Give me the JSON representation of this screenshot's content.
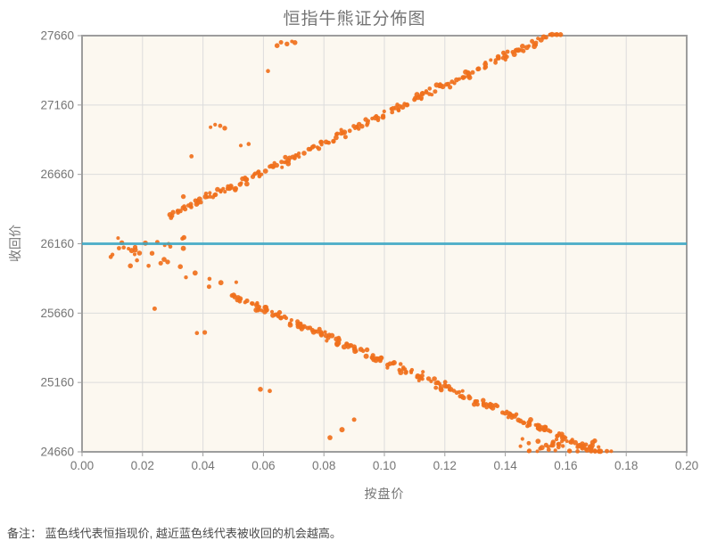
{
  "page": {
    "note": "备注： 蓝色线代表恒指现价, 越近蓝色线代表被收回的机会越高。"
  },
  "chart_data": {
    "type": "scatter",
    "title": "恒指牛熊证分佈图",
    "xlabel": "按盘价",
    "ylabel": "收回价",
    "xlim": [
      0,
      0.2
    ],
    "ylim": [
      24660,
      27660
    ],
    "x_tick_values": [
      0,
      0.02,
      0.04,
      0.06,
      0.08,
      0.1,
      0.12,
      0.14,
      0.16,
      0.18,
      0.2
    ],
    "x_tick_labels": [
      "0.00",
      "0.02",
      "0.04",
      "0.06",
      "0.08",
      "0.10",
      "0.12",
      "0.14",
      "0.16",
      "0.18",
      "0.20"
    ],
    "y_tick_values": [
      27660,
      27160,
      26660,
      26160,
      25660,
      25160,
      24660
    ],
    "y_tick_labels": [
      "27660",
      "27160",
      "26660",
      "26160",
      "25660",
      "25160",
      "24660"
    ],
    "grid": true,
    "legend": "none",
    "colors": {
      "point": "#f0701c",
      "spot_line": "#38a7c4",
      "plot_bg": "#fcf8f0",
      "grid": "#dcdcdc",
      "border": "#9d9d9d",
      "title_text": "#747474",
      "axis_text": "#757575",
      "note_text": "#4c4c4c"
    },
    "spot_line": {
      "y": 26160,
      "meaning": "恒指现价 (蓝色线)"
    },
    "point_radius": {
      "min": 2.0,
      "max": 3.0
    },
    "bands": [
      {
        "name": "bear-certificates-band-upper",
        "seed": 11,
        "count": 215,
        "x_start": 0.029,
        "x_end": 0.158,
        "x_jitter": 0.002,
        "ref_x": 0.0095,
        "ref_y": 26160,
        "slope": 10350,
        "y_sigma": 26
      },
      {
        "name": "near-spot-cloud-upper",
        "seed": 22,
        "count": 20,
        "x_start": 0.009,
        "x_end": 0.034,
        "x_jitter": 0.002,
        "ref_x": 0.0095,
        "ref_y": 26160,
        "slope": 0,
        "y_sigma": 95
      },
      {
        "name": "near-spot-lower",
        "seed": 33,
        "count": 13,
        "x_start": 0.012,
        "x_end": 0.05,
        "x_jitter": 0.002,
        "ref_x": 0.0095,
        "ref_y": 26160,
        "slope": -8600,
        "y_sigma": 60
      },
      {
        "name": "bull-certificates-band-lower",
        "seed": 44,
        "count": 235,
        "x_start": 0.05,
        "x_end": 0.171,
        "x_jitter": 0.002,
        "ref_x": 0.0095,
        "ref_y": 26160,
        "slope": -9350,
        "y_sigma": 26
      },
      {
        "name": "lower-bottom-edge-clump",
        "seed": 55,
        "count": 40,
        "x_start": 0.146,
        "x_end": 0.173,
        "x_jitter": 0.003,
        "ref_x": 0.16,
        "ref_y": 24700,
        "slope": -600,
        "y_sigma": 45
      }
    ],
    "outlier_points": [
      [
        0.0615,
        27405
      ],
      [
        0.0645,
        27588
      ],
      [
        0.0658,
        27612
      ],
      [
        0.0678,
        27600
      ],
      [
        0.0694,
        27618
      ],
      [
        0.0704,
        27610
      ],
      [
        0.0425,
        27000
      ],
      [
        0.044,
        27018
      ],
      [
        0.0457,
        27010
      ],
      [
        0.0472,
        26993
      ],
      [
        0.0362,
        26790
      ],
      [
        0.0525,
        26868
      ],
      [
        0.0551,
        26879
      ],
      [
        0.0335,
        26500
      ],
      [
        0.041,
        26521
      ],
      [
        0.0438,
        26512
      ],
      [
        0.036,
        26446
      ],
      [
        0.016,
        26001
      ],
      [
        0.024,
        25692
      ],
      [
        0.038,
        25516
      ],
      [
        0.0406,
        25521
      ],
      [
        0.059,
        25111
      ],
      [
        0.0621,
        25099
      ],
      [
        0.082,
        24762
      ],
      [
        0.086,
        24820
      ],
      [
        0.09,
        24892
      ]
    ]
  }
}
